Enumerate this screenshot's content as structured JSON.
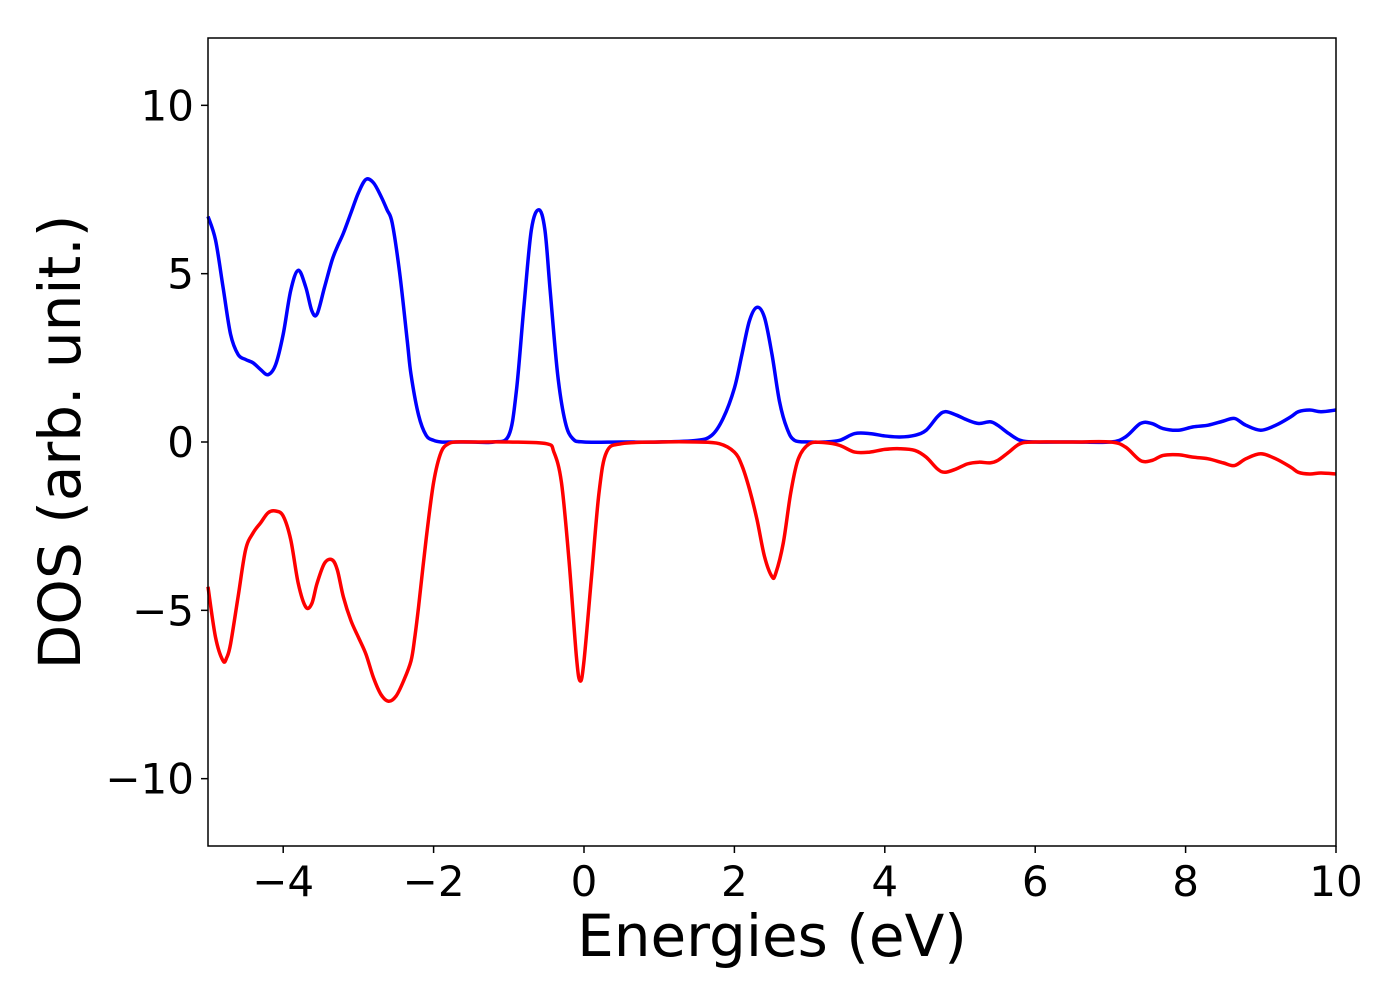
{
  "chart_data": {
    "type": "line",
    "title": "",
    "xlabel": "Energies (eV)",
    "ylabel": "DOS (arb. unit.)",
    "xlim": [
      -5,
      10
    ],
    "ylim": [
      -12,
      12
    ],
    "grid": false,
    "x_ticks": [
      -4,
      -2,
      0,
      2,
      4,
      6,
      8,
      10
    ],
    "x_tick_labels": [
      "−4",
      "−2",
      "0",
      "2",
      "4",
      "6",
      "8",
      "10"
    ],
    "y_ticks": [
      -10,
      -5,
      0,
      5,
      10
    ],
    "y_tick_labels": [
      "−10",
      "−5",
      "0",
      "5",
      "10"
    ],
    "series": [
      {
        "color": "#0000ff",
        "x": [
          -5.0,
          -4.9,
          -4.8,
          -4.7,
          -4.6,
          -4.5,
          -4.4,
          -4.3,
          -4.2,
          -4.1,
          -4.0,
          -3.9,
          -3.8,
          -3.7,
          -3.62,
          -3.55,
          -3.45,
          -3.35,
          -3.28,
          -3.2,
          -3.1,
          -3.0,
          -2.9,
          -2.8,
          -2.7,
          -2.62,
          -2.55,
          -2.45,
          -2.35,
          -2.3,
          -2.2,
          -2.1,
          -2.0,
          -1.9,
          -1.8,
          -1.7,
          -1.5,
          -1.2,
          -1.0,
          -0.9,
          -0.8,
          -0.7,
          -0.6,
          -0.52,
          -0.45,
          -0.35,
          -0.25,
          -0.15,
          0.0,
          0.5,
          1.0,
          1.5,
          1.7,
          1.85,
          2.0,
          2.1,
          2.2,
          2.3,
          2.4,
          2.5,
          2.6,
          2.7,
          2.8,
          3.0,
          3.2,
          3.4,
          3.6,
          3.8,
          4.0,
          4.2,
          4.4,
          4.55,
          4.7,
          4.8,
          4.95,
          5.1,
          5.25,
          5.4,
          5.5,
          5.65,
          5.8,
          6.0,
          6.5,
          7.0,
          7.2,
          7.4,
          7.55,
          7.7,
          7.9,
          8.1,
          8.3,
          8.5,
          8.65,
          8.8,
          9.0,
          9.2,
          9.4,
          9.5,
          9.65,
          9.8,
          10.0
        ],
        "y": [
          6.7,
          6.0,
          4.6,
          3.2,
          2.6,
          2.45,
          2.35,
          2.15,
          2.0,
          2.3,
          3.2,
          4.5,
          5.1,
          4.6,
          3.9,
          3.8,
          4.6,
          5.4,
          5.8,
          6.2,
          6.8,
          7.4,
          7.8,
          7.7,
          7.3,
          6.9,
          6.5,
          5.0,
          3.0,
          2.0,
          0.8,
          0.2,
          0.05,
          0.0,
          0.0,
          0.0,
          0.0,
          0.0,
          0.2,
          1.5,
          4.0,
          6.3,
          6.9,
          6.3,
          4.5,
          2.0,
          0.6,
          0.1,
          0.0,
          0.0,
          0.0,
          0.05,
          0.2,
          0.7,
          1.6,
          2.6,
          3.6,
          4.0,
          3.7,
          2.6,
          1.2,
          0.4,
          0.05,
          0.0,
          0.0,
          0.05,
          0.25,
          0.25,
          0.18,
          0.15,
          0.2,
          0.35,
          0.75,
          0.9,
          0.8,
          0.65,
          0.55,
          0.6,
          0.5,
          0.25,
          0.05,
          0.0,
          0.0,
          0.0,
          0.15,
          0.55,
          0.55,
          0.4,
          0.35,
          0.45,
          0.5,
          0.62,
          0.7,
          0.5,
          0.35,
          0.5,
          0.75,
          0.9,
          0.95,
          0.9,
          0.95
        ]
      },
      {
        "color": "#ff0000",
        "x": [
          -5.0,
          -4.9,
          -4.8,
          -4.75,
          -4.7,
          -4.6,
          -4.5,
          -4.4,
          -4.3,
          -4.2,
          -4.1,
          -4.0,
          -3.9,
          -3.8,
          -3.7,
          -3.62,
          -3.55,
          -3.45,
          -3.35,
          -3.28,
          -3.2,
          -3.1,
          -3.0,
          -2.9,
          -2.8,
          -2.7,
          -2.6,
          -2.5,
          -2.4,
          -2.3,
          -2.25,
          -2.2,
          -2.1,
          -2.0,
          -1.9,
          -1.8,
          -1.7,
          -1.5,
          -1.0,
          -0.5,
          -0.4,
          -0.3,
          -0.2,
          -0.1,
          -0.05,
          0.0,
          0.1,
          0.2,
          0.3,
          0.5,
          1.0,
          1.5,
          1.8,
          2.0,
          2.1,
          2.2,
          2.3,
          2.4,
          2.5,
          2.55,
          2.65,
          2.75,
          2.85,
          3.0,
          3.2,
          3.4,
          3.6,
          3.8,
          4.0,
          4.2,
          4.4,
          4.55,
          4.7,
          4.8,
          4.95,
          5.1,
          5.25,
          5.4,
          5.5,
          5.65,
          5.8,
          6.0,
          6.5,
          7.0,
          7.2,
          7.4,
          7.55,
          7.7,
          7.9,
          8.1,
          8.3,
          8.5,
          8.65,
          8.8,
          9.0,
          9.2,
          9.4,
          9.5,
          9.65,
          9.8,
          10.0
        ],
        "y": [
          -4.3,
          -5.8,
          -6.5,
          -6.4,
          -6.0,
          -4.6,
          -3.2,
          -2.7,
          -2.4,
          -2.1,
          -2.05,
          -2.2,
          -2.9,
          -4.2,
          -4.9,
          -4.8,
          -4.2,
          -3.6,
          -3.5,
          -3.8,
          -4.6,
          -5.3,
          -5.8,
          -6.3,
          -7.0,
          -7.5,
          -7.7,
          -7.55,
          -7.1,
          -6.5,
          -5.8,
          -4.9,
          -2.9,
          -1.2,
          -0.3,
          -0.05,
          0.0,
          0.0,
          0.0,
          -0.05,
          -0.3,
          -1.2,
          -3.5,
          -6.4,
          -7.1,
          -6.5,
          -4.0,
          -1.5,
          -0.3,
          -0.05,
          0.0,
          0.0,
          -0.05,
          -0.3,
          -0.7,
          -1.4,
          -2.3,
          -3.4,
          -4.0,
          -3.9,
          -3.0,
          -1.5,
          -0.5,
          -0.05,
          -0.02,
          -0.1,
          -0.3,
          -0.3,
          -0.22,
          -0.2,
          -0.25,
          -0.45,
          -0.8,
          -0.9,
          -0.8,
          -0.65,
          -0.6,
          -0.62,
          -0.55,
          -0.3,
          -0.05,
          0.0,
          0.0,
          0.0,
          -0.15,
          -0.55,
          -0.55,
          -0.4,
          -0.38,
          -0.45,
          -0.5,
          -0.62,
          -0.7,
          -0.5,
          -0.35,
          -0.5,
          -0.75,
          -0.9,
          -0.95,
          -0.92,
          -0.95
        ]
      }
    ]
  }
}
